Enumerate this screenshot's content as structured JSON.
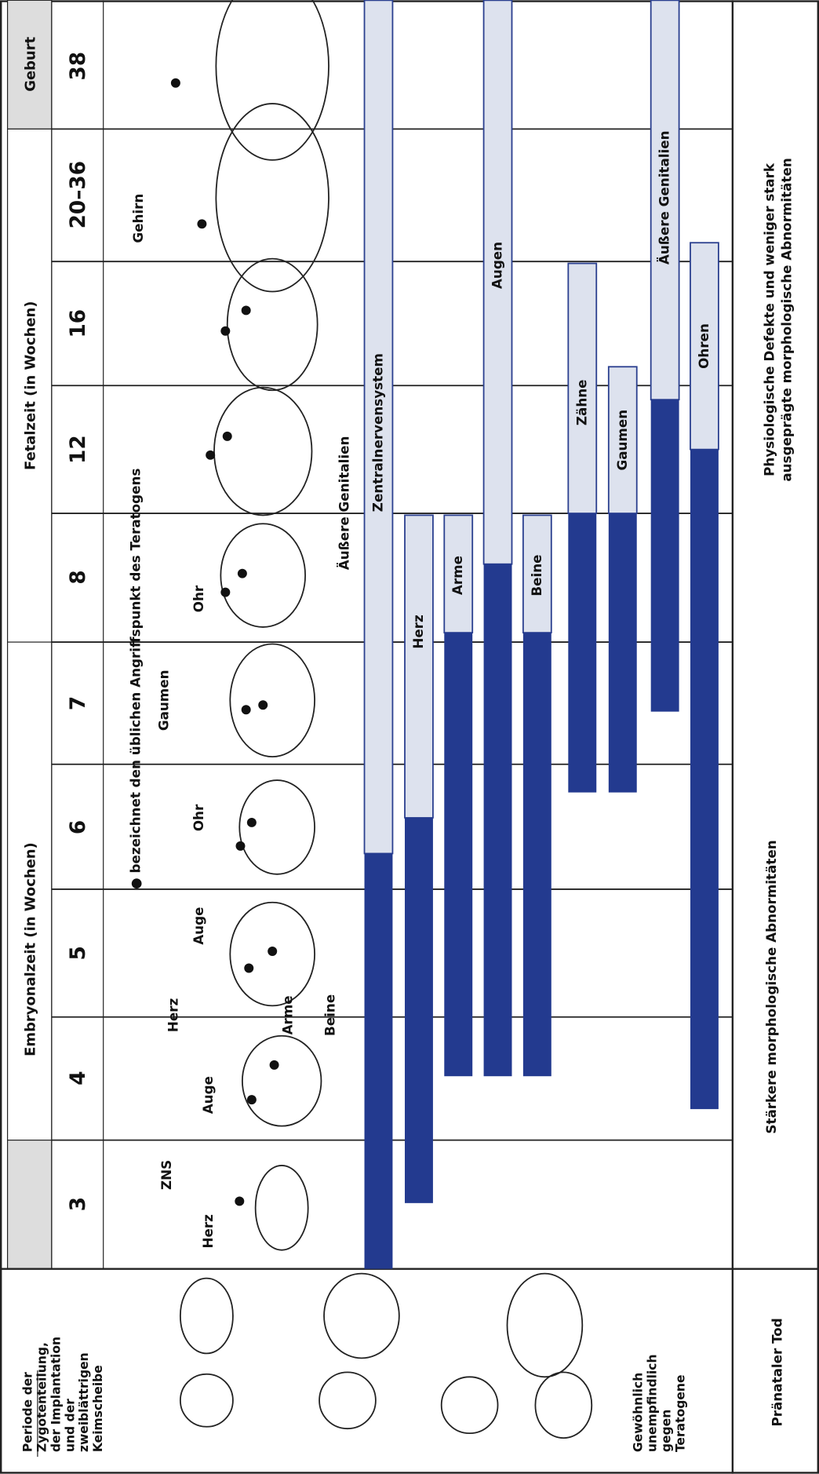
{
  "periods": {
    "birth": "Geburt",
    "fetal": "Fetalzeit (in Wochen)",
    "embryonal": "Embryonalzeit (in Wochen)"
  },
  "weeks": [
    "38",
    "20–36",
    "16",
    "12",
    "8",
    "7",
    "6",
    "5",
    "4",
    "3"
  ],
  "legend": "● bezeichnet den üblichen Angriffspunkt des Teratogens",
  "organs": [
    "Zentralnervensystem",
    "Herz",
    "Arme",
    "Augen",
    "Beine",
    "Zähne",
    "Gaumen",
    "Äußere Genitalien",
    "Ohren"
  ],
  "embryo_labels": [
    "ZNS",
    "Herz",
    "Auge",
    "Herz",
    "Auge",
    "Arme",
    "Beine",
    "Ohr",
    "Gaumen",
    "Ohr",
    "Äußere Genitalien",
    "Gehirn"
  ],
  "outcomes": {
    "severe": "Stärkere morphologische Abnormitäten",
    "mild": [
      "Physiologische Defekte und weniger stark",
      "ausgeprägte morphologische Abnormitäten"
    ]
  },
  "early": {
    "period": [
      "Periode der",
      "Zygotenteilung,",
      "der Implantation",
      "und der",
      "zweiblättrigen",
      "Keimscheibe"
    ],
    "insensitive": [
      "Gewöhnlich",
      "unempfindlich",
      "gegen",
      "Teratogene"
    ],
    "death": "Pränataler Tod"
  }
}
